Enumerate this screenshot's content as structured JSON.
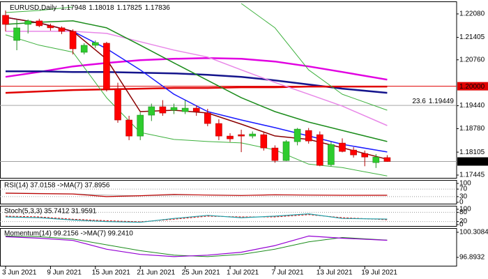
{
  "chart_data": [
    {
      "type": "candlestick",
      "title": "EURUSD,Daily",
      "header_values": [
        1.17948,
        1.18018,
        1.17825,
        1.17836
      ],
      "categories": [
        "3 Jun 2021",
        null,
        null,
        null,
        "9 Jun 2021",
        null,
        null,
        null,
        "15 Jun 2021",
        null,
        null,
        null,
        "21 Jun 2021",
        null,
        null,
        null,
        "25 Jun 2021",
        null,
        null,
        null,
        "1 Jul 2021",
        null,
        null,
        null,
        "7 Jul 2021",
        null,
        null,
        null,
        "13 Jul 2021",
        null,
        null,
        null,
        "19 Jul 2021",
        null,
        null
      ],
      "open": [
        1.2204,
        1.21317,
        1.21779,
        1.21879,
        1.21739,
        1.2168,
        1.21578,
        1.20976,
        1.21177,
        1.21237,
        1.19912,
        1.19029,
        1.18567,
        1.19169,
        1.1941,
        1.1931,
        1.1927,
        1.1937,
        1.19229,
        1.18928,
        1.18567,
        1.18607,
        1.18567,
        1.18607,
        1.18225,
        1.17864,
        1.18406,
        1.18727,
        1.18607,
        1.17744,
        1.18366,
        1.18165,
        1.18065,
        1.17804,
        1.17948
      ],
      "high": [
        1.2218,
        1.21919,
        1.21919,
        1.2194,
        1.218,
        1.2172,
        1.21638,
        1.21237,
        1.21317,
        1.21277,
        1.201,
        1.1915,
        1.1925,
        1.195,
        1.196,
        1.195,
        1.196,
        1.1945,
        1.1935,
        1.1905,
        1.1865,
        1.1875,
        1.187,
        1.187,
        1.183,
        1.1845,
        1.188,
        1.188,
        1.187,
        1.184,
        1.185,
        1.1825,
        1.1815,
        1.1805,
        1.18018
      ],
      "low": [
        1.21578,
        1.21036,
        1.21518,
        1.217,
        1.216,
        1.215,
        1.20916,
        1.20916,
        1.211,
        1.1985,
        1.1895,
        1.1845,
        1.1845,
        1.19,
        1.1915,
        1.192,
        1.192,
        1.1915,
        1.1885,
        1.1845,
        1.184,
        1.18105,
        1.185,
        1.1815,
        1.178,
        1.1785,
        1.183,
        1.1835,
        1.177,
        1.177,
        1.181,
        1.1795,
        1.177,
        1.1765,
        1.17825
      ],
      "close": [
        1.21779,
        1.21678,
        1.21879,
        1.21739,
        1.2168,
        1.21578,
        1.21076,
        1.21177,
        1.21257,
        1.19912,
        1.19029,
        1.18567,
        1.19169,
        1.1941,
        1.19229,
        1.1939,
        1.1937,
        1.1927,
        1.18928,
        1.18567,
        1.18486,
        1.18567,
        1.18627,
        1.18225,
        1.17864,
        1.18406,
        1.18767,
        1.18426,
        1.17724,
        1.18326,
        1.18125,
        1.18025,
        1.17964,
        1.17964,
        1.17836
      ],
      "up_color": "#2ecc2e",
      "down_color": "#ff0000",
      "ylim": [
        1.17345,
        1.2244
      ],
      "yticks": [
        {
          "value": 1.2208,
          "label": "1.22080"
        },
        1.21405,
        {
          "value": 1.2076,
          "label": "1.20760"
        },
        {
          "value": 1.1944,
          "label": "1.19440"
        },
        {
          "value": 1.1878,
          "label": "1.18780"
        },
        1.18105,
        1.17445
      ],
      "tick_lines": false,
      "hlines": [
        {
          "value": 1.2,
          "label": "1.20000",
          "color": "#e00000",
          "box_color": "#e00000"
        },
        {
          "value": 1.19449,
          "level": "23.6",
          "color": "#a8a8a8"
        },
        {
          "value": 1.17836,
          "color": "#a0a0a0",
          "box_color": "#000000"
        }
      ],
      "series": [
        {
          "color": "#e100e1",
          "width": 2.5,
          "x": [
            0,
            3,
            6,
            9,
            12,
            15,
            18,
            21,
            24,
            27,
            30,
            34
          ],
          "values": [
            1.2027,
            1.2041,
            1.2057,
            1.2067,
            1.2075,
            1.2079,
            1.2081,
            1.2079,
            1.2071,
            1.2057,
            1.2041,
            1.2019
          ]
        },
        {
          "color": "#14148c",
          "width": 2.5,
          "x": [
            0,
            3,
            6,
            9,
            12,
            15,
            18,
            21,
            24,
            27,
            30,
            34
          ],
          "values": [
            1.2043,
            1.2043,
            1.2041,
            1.2041,
            1.2039,
            1.2037,
            1.2033,
            1.2027,
            1.2017,
            1.2005,
            1.1993,
            1.1981
          ]
        },
        {
          "color": "#e00000",
          "width": 2.5,
          "x": [
            0,
            3,
            6,
            9,
            12,
            15,
            18,
            21,
            24,
            27,
            30,
            34
          ],
          "values": [
            1.1981,
            1.1985,
            1.1989,
            1.1991,
            1.1993,
            1.1995,
            1.1995,
            1.1997,
            1.1997,
            1.1999,
            1.1999,
            1.1999
          ]
        },
        {
          "color": "#e887e8",
          "width": 1.5,
          "x": [
            0,
            3,
            6,
            9,
            12,
            15,
            18,
            21,
            24,
            27,
            30,
            34
          ],
          "values": [
            1.2158,
            1.2158,
            1.2158,
            1.2152,
            1.2128,
            1.2104,
            1.2084,
            1.2047,
            1.2011,
            1.1977,
            1.1943,
            1.1887
          ]
        },
        {
          "color": "#1b8c1b",
          "width": 1.5,
          "x": [
            0,
            3,
            6,
            9,
            12,
            15,
            18,
            21,
            24,
            27,
            30,
            34
          ],
          "values": [
            1.2178,
            1.2184,
            1.2188,
            1.2168,
            1.2118,
            1.2067,
            1.2017,
            1.1967,
            1.1927,
            1.1897,
            1.1873,
            1.1841
          ]
        },
        {
          "color": "#1a1aff",
          "width": 1.5,
          "x": [
            0,
            3,
            6,
            9,
            12,
            15,
            18,
            21,
            24,
            27,
            30,
            34
          ],
          "values": [
            1.2198,
            1.2182,
            1.2158,
            1.2108,
            1.2047,
            1.1977,
            1.1927,
            1.1903,
            1.1881,
            1.1857,
            1.1833,
            1.1811
          ]
        },
        {
          "color": "#8b0000",
          "width": 1.5,
          "x": [
            0,
            3,
            6,
            9,
            12,
            15,
            18,
            21,
            24,
            27,
            30,
            34
          ],
          "values": [
            1.2198,
            1.2182,
            1.2158,
            1.2078,
            1.1927,
            1.1931,
            1.1923,
            1.1891,
            1.1857,
            1.1847,
            1.1823,
            1.179
          ]
        },
        {
          "color": "#3cb03c",
          "width": 1,
          "x": [
            0,
            3,
            6,
            9,
            12,
            15,
            18,
            21,
            24,
            27,
            30,
            34
          ],
          "values": [
            1.2212,
            1.2218,
            1.2228,
            null,
            null,
            null,
            null,
            1.2238,
            1.2168,
            1.2047,
            1.1977,
            1.1931
          ]
        },
        {
          "color": "#3cb03c",
          "width": 1,
          "x": [
            0,
            3,
            6,
            9,
            12,
            15,
            18,
            21,
            24,
            27,
            30,
            34
          ],
          "values": [
            1.2148,
            1.2118,
            1.2098,
            1.1967,
            1.1867,
            1.1847,
            1.1841,
            1.1837,
            1.1817,
            1.1776,
            1.1766,
            1.1742
          ]
        }
      ]
    },
    {
      "type": "line",
      "title": "RSI(14) 37.0158 ->MA(7) 37.8956",
      "ylim": [
        0,
        100
      ],
      "yticks": [
        100,
        70,
        30,
        0
      ],
      "tick_lines": true,
      "series": [
        {
          "color": "#b0b0b0",
          "width": 1,
          "x": [
            0,
            3,
            6,
            9,
            12,
            15,
            18,
            21,
            24,
            27,
            30,
            34
          ],
          "values": [
            50,
            47,
            45,
            38,
            34,
            38,
            39,
            37,
            38,
            38,
            37,
            37.8956
          ]
        },
        {
          "color": "#c00000",
          "width": 1.2,
          "x": [
            0,
            3,
            6,
            9,
            12,
            15,
            18,
            21,
            24,
            27,
            30,
            34
          ],
          "values": [
            48,
            46,
            44,
            30,
            35,
            42,
            38,
            36,
            40,
            38,
            37,
            37.0158
          ]
        }
      ]
    },
    {
      "type": "line",
      "title": "Stoch(5,3,3) 35.7412 31.9591",
      "ylim": [
        0,
        100
      ],
      "yticks": [
        100,
        80,
        20,
        0
      ],
      "tick_lines": true,
      "series": [
        {
          "color": "#e00000",
          "width": 1,
          "dash": true,
          "x": [
            0,
            3,
            6,
            9,
            12,
            15,
            18,
            21,
            24,
            27,
            30,
            34
          ],
          "values": [
            55,
            50,
            35,
            25,
            18,
            35,
            55,
            50,
            50,
            65,
            45,
            31.9591
          ]
        },
        {
          "color": "#20a0a8",
          "width": 1.2,
          "x": [
            0,
            3,
            6,
            9,
            12,
            15,
            18,
            21,
            24,
            27,
            30,
            34
          ],
          "values": [
            50,
            45,
            30,
            20,
            15,
            40,
            60,
            45,
            55,
            70,
            40,
            35.7412
          ]
        }
      ]
    },
    {
      "type": "line",
      "title": "Momentum(14) 99.2156 ->MA(7) 99.2410",
      "ylim": [
        95.66,
        100.878
      ],
      "yticks": [
        100.3084,
        96.8932
      ],
      "tick_lines": false,
      "series": [
        {
          "color": "#1b8c1b",
          "width": 1,
          "x": [
            0,
            3,
            6,
            9,
            12,
            15,
            18,
            21,
            24,
            27,
            30,
            34
          ],
          "values": [
            99.8,
            99.7,
            99.4,
            98.6,
            97.8,
            97.2,
            97.0,
            97.3,
            98.0,
            99.0,
            99.6,
            99.241
          ]
        },
        {
          "color": "#9400d3",
          "width": 1.2,
          "x": [
            0,
            3,
            6,
            9,
            12,
            15,
            18,
            21,
            24,
            27,
            30,
            34
          ],
          "values": [
            99.7,
            99.5,
            99.2,
            98.0,
            97.3,
            97.0,
            97.2,
            97.6,
            98.5,
            99.8,
            99.5,
            99.2156
          ]
        }
      ]
    }
  ]
}
